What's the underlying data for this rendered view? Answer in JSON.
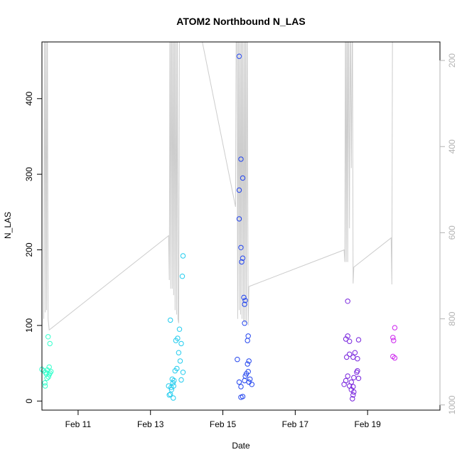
{
  "chart_data": {
    "type": "scatter",
    "title": "ATOM2 Northbound N_LAS",
    "xlabel": "Date",
    "ylabel": "N_LAS",
    "x_unit": "date (February, hours as decimal days)",
    "xlim": [
      10,
      21.0
    ],
    "ylim": [
      -12,
      475
    ],
    "x_ticks": [
      {
        "value": 11,
        "label": "Feb 11"
      },
      {
        "value": 13,
        "label": "Feb 13"
      },
      {
        "value": 15,
        "label": "Feb 15"
      },
      {
        "value": 17,
        "label": "Feb 17"
      },
      {
        "value": 19,
        "label": "Feb 19"
      }
    ],
    "y_ticks": [
      0,
      100,
      200,
      300,
      400
    ],
    "y2_ticks": [
      200,
      400,
      600,
      800,
      1000
    ],
    "y2lim_reversed": [
      1012,
      157
    ],
    "grid": false,
    "legend": "none",
    "point_series": [
      {
        "color": "#33ffcc",
        "points": [
          [
            10.17,
            85
          ],
          [
            10.22,
            76
          ],
          [
            10.0,
            42
          ],
          [
            10.05,
            40
          ],
          [
            10.1,
            38
          ],
          [
            10.2,
            45
          ],
          [
            10.15,
            41
          ],
          [
            10.25,
            39
          ],
          [
            10.12,
            36
          ],
          [
            10.18,
            32
          ],
          [
            10.14,
            30
          ],
          [
            10.08,
            24
          ],
          [
            10.09,
            20
          ],
          [
            10.2,
            35
          ],
          [
            10.22,
            37
          ]
        ]
      },
      {
        "color": "#22ccee",
        "points": [
          [
            13.55,
            107
          ],
          [
            13.8,
            95
          ],
          [
            13.75,
            83
          ],
          [
            13.7,
            80
          ],
          [
            13.85,
            76
          ],
          [
            13.78,
            64
          ],
          [
            13.82,
            53
          ],
          [
            13.73,
            43
          ],
          [
            13.68,
            40
          ],
          [
            13.9,
            38
          ],
          [
            13.6,
            29
          ],
          [
            13.65,
            27
          ],
          [
            13.85,
            28
          ],
          [
            13.62,
            24
          ],
          [
            13.64,
            20
          ],
          [
            13.57,
            18
          ],
          [
            13.58,
            15
          ],
          [
            13.5,
            20
          ],
          [
            13.55,
            9
          ],
          [
            13.52,
            8
          ],
          [
            13.63,
            4
          ],
          [
            13.9,
            192
          ],
          [
            13.88,
            165
          ]
        ]
      },
      {
        "color": "#2244ee",
        "points": [
          [
            15.45,
            456
          ],
          [
            15.5,
            320
          ],
          [
            15.55,
            295
          ],
          [
            15.45,
            279
          ],
          [
            15.45,
            241
          ],
          [
            15.5,
            203
          ],
          [
            15.55,
            189
          ],
          [
            15.52,
            184
          ],
          [
            15.58,
            137
          ],
          [
            15.62,
            133
          ],
          [
            15.6,
            128
          ],
          [
            15.6,
            103
          ],
          [
            15.7,
            86
          ],
          [
            15.68,
            80
          ],
          [
            15.4,
            55
          ],
          [
            15.72,
            53
          ],
          [
            15.68,
            49
          ],
          [
            15.7,
            39
          ],
          [
            15.65,
            36
          ],
          [
            15.62,
            33
          ],
          [
            15.75,
            29
          ],
          [
            15.6,
            27
          ],
          [
            15.72,
            25
          ],
          [
            15.45,
            25
          ],
          [
            15.8,
            22
          ],
          [
            15.5,
            19
          ],
          [
            15.55,
            6
          ],
          [
            15.5,
            5
          ]
        ]
      },
      {
        "color": "#7722dd",
        "points": [
          [
            18.45,
            132
          ],
          [
            18.45,
            86
          ],
          [
            18.4,
            82
          ],
          [
            18.5,
            79
          ],
          [
            18.75,
            81
          ],
          [
            18.65,
            64
          ],
          [
            18.6,
            58
          ],
          [
            18.42,
            58
          ],
          [
            18.72,
            56
          ],
          [
            18.5,
            62
          ],
          [
            18.72,
            40
          ],
          [
            18.7,
            38
          ],
          [
            18.45,
            33
          ],
          [
            18.62,
            31
          ],
          [
            18.75,
            30
          ],
          [
            18.4,
            27
          ],
          [
            18.55,
            25
          ],
          [
            18.35,
            22
          ],
          [
            18.5,
            20
          ],
          [
            18.6,
            19
          ],
          [
            18.55,
            15
          ],
          [
            18.62,
            12
          ],
          [
            18.6,
            8
          ],
          [
            18.58,
            3
          ]
        ]
      },
      {
        "color": "#cc22ee",
        "points": [
          [
            19.75,
            97
          ],
          [
            19.7,
            84
          ],
          [
            19.72,
            80
          ],
          [
            19.7,
            59
          ],
          [
            19.75,
            57
          ]
        ]
      }
    ],
    "depth_line": {
      "color": "#cccccc",
      "axis": "right",
      "points": [
        [
          10.05,
          800
        ],
        [
          10.07,
          60
        ],
        [
          10.09,
          785
        ],
        [
          10.11,
          60
        ],
        [
          10.13,
          780
        ],
        [
          10.15,
          60
        ],
        [
          10.17,
          800
        ],
        [
          10.2,
          826
        ],
        [
          13.5,
          607
        ],
        [
          13.52,
          710
        ],
        [
          13.54,
          60
        ],
        [
          13.56,
          730
        ],
        [
          13.58,
          60
        ],
        [
          13.6,
          730
        ],
        [
          13.62,
          60
        ],
        [
          13.64,
          745
        ],
        [
          13.66,
          60
        ],
        [
          13.68,
          780
        ],
        [
          13.7,
          60
        ],
        [
          13.72,
          790
        ],
        [
          13.74,
          60
        ],
        [
          13.76,
          800
        ],
        [
          13.78,
          810
        ],
        [
          13.8,
          60
        ],
        [
          13.82,
          60
        ],
        [
          14.2,
          60
        ],
        [
          15.35,
          540
        ],
        [
          15.37,
          60
        ],
        [
          15.39,
          60
        ],
        [
          15.41,
          800
        ],
        [
          15.43,
          60
        ],
        [
          15.45,
          780
        ],
        [
          15.47,
          60
        ],
        [
          15.49,
          790
        ],
        [
          15.51,
          60
        ],
        [
          15.53,
          800
        ],
        [
          15.55,
          60
        ],
        [
          15.57,
          805
        ],
        [
          15.59,
          60
        ],
        [
          15.61,
          810
        ],
        [
          15.63,
          60
        ],
        [
          15.65,
          810
        ],
        [
          15.67,
          60
        ],
        [
          15.7,
          815
        ],
        [
          15.72,
          725
        ],
        [
          18.35,
          640
        ],
        [
          18.37,
          668
        ],
        [
          18.39,
          60
        ],
        [
          18.41,
          668
        ],
        [
          18.43,
          60
        ],
        [
          18.45,
          668
        ],
        [
          18.47,
          60
        ],
        [
          18.5,
          590
        ],
        [
          18.52,
          60
        ],
        [
          18.55,
          450
        ],
        [
          18.58,
          60
        ],
        [
          18.6,
          718
        ],
        [
          18.62,
          680
        ],
        [
          19.65,
          612
        ],
        [
          19.67,
          720
        ],
        [
          19.69,
          60
        ],
        [
          19.71,
          60
        ]
      ]
    }
  }
}
